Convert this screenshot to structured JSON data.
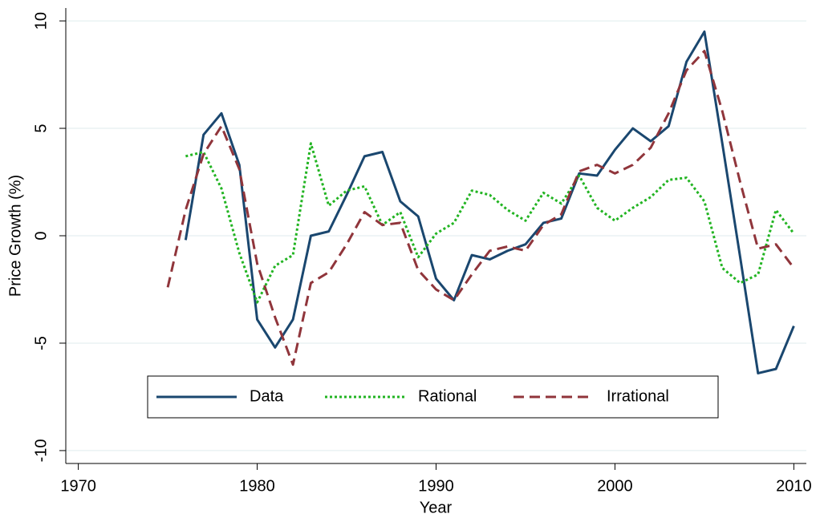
{
  "chart_data": {
    "type": "line",
    "x_label": "Year",
    "y_label": "Price Growth (%)",
    "x": [
      1975,
      1976,
      1977,
      1978,
      1979,
      1980,
      1981,
      1982,
      1983,
      1984,
      1985,
      1986,
      1987,
      1988,
      1989,
      1990,
      1991,
      1992,
      1993,
      1994,
      1995,
      1996,
      1997,
      1998,
      1999,
      2000,
      2001,
      2002,
      2003,
      2004,
      2005,
      2006,
      2007,
      2008,
      2009,
      2010
    ],
    "series": [
      {
        "name": "Data",
        "color": "#1a476f",
        "dash": "solid",
        "values": [
          null,
          -0.2,
          4.7,
          5.7,
          3.3,
          -3.9,
          -5.2,
          -3.9,
          0,
          0.2,
          1.9,
          3.7,
          3.9,
          1.6,
          0.9,
          -2.0,
          -3.0,
          -0.9,
          -1.1,
          -0.7,
          -0.4,
          0.6,
          0.8,
          2.9,
          2.8,
          4.0,
          5.0,
          4.4,
          5.1,
          8.1,
          9.5,
          4.3,
          -1.0,
          -6.4,
          -6.2,
          -4.2
        ]
      },
      {
        "name": "Rational",
        "color": "#22b422",
        "dash": "dotted",
        "values": [
          null,
          3.7,
          3.9,
          2.2,
          -0.8,
          -3.1,
          -1.4,
          -0.9,
          4.3,
          1.4,
          2.1,
          2.3,
          0.5,
          1.1,
          -1.0,
          0.1,
          0.6,
          2.1,
          1.9,
          1.2,
          0.7,
          2.0,
          1.5,
          2.8,
          1.3,
          0.7,
          1.3,
          1.8,
          2.6,
          2.7,
          1.6,
          -1.5,
          -2.2,
          -1.8,
          1.2,
          0.1
        ]
      },
      {
        "name": "Irrational",
        "color": "#90353b",
        "dash": "dashed",
        "values": [
          -2.4,
          1.2,
          3.8,
          5.1,
          3.1,
          -1.3,
          -3.8,
          -6.0,
          -2.2,
          -1.7,
          -0.4,
          1.1,
          0.5,
          0.6,
          -1.6,
          -2.5,
          -3.0,
          -1.8,
          -0.7,
          -0.5,
          -0.7,
          0.5,
          1.0,
          3.0,
          3.3,
          2.9,
          3.3,
          4.1,
          5.7,
          7.7,
          8.6,
          5.8,
          2.5,
          -0.6,
          -0.4,
          -1.5
        ]
      }
    ],
    "xlim": [
      1969.3,
      2010.7
    ],
    "xticks": [
      1970,
      1980,
      1990,
      2000,
      2010
    ],
    "ylim": [
      -10.6,
      10.6
    ],
    "yticks": [
      -10,
      -5,
      0,
      5,
      10
    ],
    "grid": true,
    "legend": "bottom"
  }
}
